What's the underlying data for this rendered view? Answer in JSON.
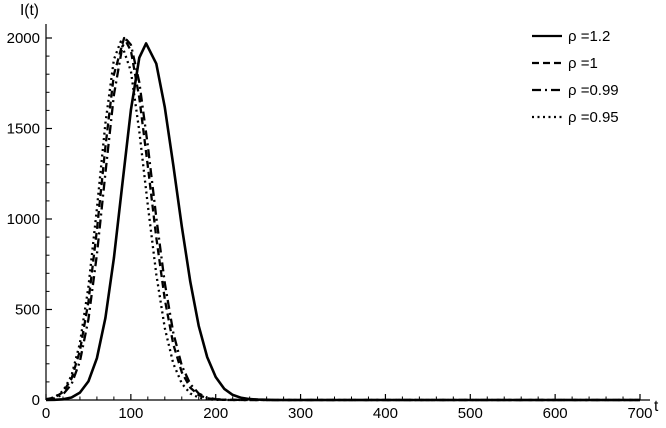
{
  "chart_data": {
    "type": "line",
    "title": "",
    "xlabel": "t",
    "ylabel": "I(t)",
    "xlim": [
      0,
      700
    ],
    "ylim": [
      0,
      2000
    ],
    "xticks": [
      0,
      100,
      200,
      300,
      400,
      500,
      600,
      700
    ],
    "yticks": [
      0,
      500,
      1000,
      1500,
      2000
    ],
    "x_minor_tick_step": 20,
    "y_minor_tick_step": 100,
    "grid": false,
    "legend_position": "top-right",
    "line_color": "#000000",
    "series": [
      {
        "name": "ρ =1.2",
        "style": "solid",
        "x": [
          0,
          10,
          20,
          30,
          40,
          50,
          60,
          70,
          80,
          90,
          100,
          110,
          118,
          130,
          140,
          150,
          160,
          170,
          180,
          190,
          200,
          210,
          220,
          230,
          240,
          250,
          260,
          270,
          280,
          300,
          350,
          400,
          450,
          500,
          550,
          600,
          650,
          700
        ],
        "values": [
          0,
          1,
          4,
          14,
          41,
          103,
          231,
          453,
          784,
          1195,
          1602,
          1891,
          1970,
          1858,
          1617,
          1297,
          959,
          653,
          410,
          237,
          127,
          62,
          28,
          12,
          5,
          2,
          1,
          0,
          0,
          0,
          0,
          0,
          0,
          0,
          0,
          0,
          0,
          0
        ]
      },
      {
        "name": "ρ =1",
        "style": "dashed",
        "x": [
          0,
          10,
          20,
          30,
          40,
          50,
          60,
          70,
          80,
          92,
          100,
          110,
          120,
          130,
          140,
          150,
          160,
          170,
          180,
          190,
          200,
          210,
          220,
          240,
          260,
          280,
          300,
          350,
          400,
          450,
          500,
          550,
          600,
          650,
          700
        ],
        "values": [
          4,
          14,
          43,
          117,
          271,
          542,
          938,
          1398,
          1798,
          2000,
          1930,
          1670,
          1293,
          897,
          556,
          308,
          153,
          68,
          27,
          10,
          3,
          1,
          0,
          0,
          0,
          0,
          0,
          0,
          0,
          0,
          0,
          0,
          0,
          0,
          0
        ]
      },
      {
        "name": "ρ =0.99",
        "style": "dashdot",
        "x": [
          0,
          10,
          20,
          30,
          40,
          50,
          60,
          70,
          80,
          90,
          95,
          100,
          110,
          120,
          130,
          140,
          150,
          160,
          170,
          180,
          190,
          200,
          210,
          220,
          240,
          260,
          280,
          300,
          350,
          400,
          450,
          500,
          550,
          600,
          650,
          700
        ],
        "values": [
          3,
          10,
          31,
          87,
          213,
          445,
          804,
          1253,
          1685,
          1954,
          1990,
          1963,
          1756,
          1406,
          1008,
          646,
          371,
          190,
          88,
          36,
          13,
          5,
          2,
          1,
          0,
          0,
          0,
          0,
          0,
          0,
          0,
          0,
          0,
          0,
          0,
          0
        ]
      },
      {
        "name": "ρ =0.95",
        "style": "dotted",
        "x": [
          0,
          10,
          20,
          30,
          40,
          50,
          60,
          70,
          80,
          88,
          100,
          110,
          120,
          130,
          140,
          150,
          160,
          170,
          180,
          190,
          200,
          220,
          240,
          260,
          280,
          300,
          350,
          400,
          450,
          500,
          550,
          600,
          650,
          700
        ],
        "values": [
          4,
          15,
          49,
          134,
          313,
          624,
          1057,
          1528,
          1881,
          1980,
          1817,
          1485,
          1077,
          694,
          397,
          201,
          91,
          36,
          13,
          4,
          1,
          0,
          0,
          0,
          0,
          0,
          0,
          0,
          0,
          0,
          0,
          0,
          0,
          0
        ]
      }
    ]
  }
}
